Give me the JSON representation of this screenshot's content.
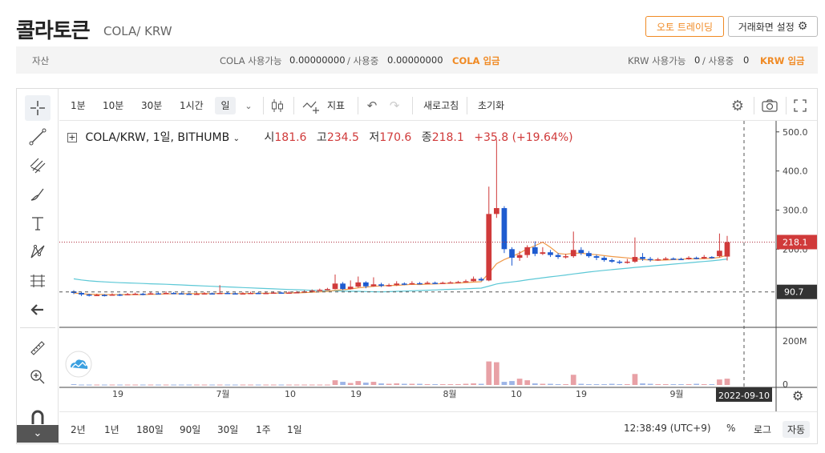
{
  "header": {
    "title": "콜라토큰",
    "subtitle": "COLA/ KRW",
    "auto_trading_label": "오토 트레이딩",
    "settings_label": "거래화면 설정"
  },
  "assets": {
    "label": "자산",
    "cola_available_label": "COLA 사용가능",
    "cola_available": "0.00000000",
    "cola_in_use_label": "/ 사용중",
    "cola_in_use": "0.00000000",
    "cola_deposit": "COLA 입금",
    "krw_available_label": "KRW 사용가능",
    "krw_available": "0",
    "krw_in_use_label": "/ 사용중",
    "krw_in_use": "0",
    "krw_deposit": "KRW 입금"
  },
  "toolbar": {
    "intervals": [
      "1분",
      "10분",
      "30분",
      "1시간",
      "일"
    ],
    "selected_interval": "일",
    "indicator_label": "지표",
    "refresh_label": "새로고침",
    "reset_label": "초기화"
  },
  "legend": {
    "symbol": "COLA/KRW, 1일, BITHUMB",
    "open_label": "시",
    "open": "181.6",
    "high_label": "고",
    "high": "234.5",
    "low_label": "저",
    "low": "170.6",
    "close_label": "종",
    "close": "218.1",
    "change": "+35.8 (+19.64%)"
  },
  "price_axis": {
    "ticks": [
      "500.0",
      "400.0",
      "300.0",
      "200.0"
    ],
    "current_price": "218.1",
    "crosshair_price": "90.7",
    "volume_ticks": [
      "200M",
      "0"
    ]
  },
  "time_axis": {
    "ticks": [
      "19",
      "7월",
      "10",
      "19",
      "8월",
      "10",
      "19",
      "9월"
    ],
    "crosshair_date": "2022-09-10"
  },
  "bottom": {
    "ranges": [
      "2년",
      "1년",
      "180일",
      "90일",
      "30일",
      "1주",
      "1일"
    ],
    "clock": "12:38:49 (UTC+9)",
    "percent_label": "%",
    "log_label": "로그",
    "auto_label": "자동"
  },
  "chart_data": {
    "type": "candlestick",
    "ylim": [
      0,
      520
    ],
    "up_color": "#d03a3a",
    "down_color": "#1e5bd0",
    "candles": [
      [
        92,
        88,
        95,
        85
      ],
      [
        88,
        84,
        90,
        80
      ],
      [
        84,
        82,
        86,
        79
      ],
      [
        82,
        83,
        86,
        80
      ],
      [
        83,
        82,
        85,
        79
      ],
      [
        82,
        84,
        87,
        81
      ],
      [
        84,
        83,
        86,
        80
      ],
      [
        83,
        85,
        88,
        82
      ],
      [
        85,
        86,
        89,
        83
      ],
      [
        86,
        85,
        88,
        82
      ],
      [
        85,
        87,
        90,
        84
      ],
      [
        87,
        86,
        89,
        84
      ],
      [
        86,
        88,
        92,
        85
      ],
      [
        88,
        87,
        90,
        85
      ],
      [
        87,
        86,
        89,
        84
      ],
      [
        86,
        85,
        88,
        83
      ],
      [
        85,
        86,
        89,
        84
      ],
      [
        86,
        87,
        90,
        85
      ],
      [
        87,
        86,
        89,
        84
      ],
      [
        86,
        88,
        108,
        85
      ],
      [
        88,
        87,
        90,
        85
      ],
      [
        87,
        86,
        89,
        84
      ],
      [
        86,
        87,
        90,
        85
      ],
      [
        87,
        88,
        91,
        86
      ],
      [
        88,
        87,
        90,
        85
      ],
      [
        87,
        88,
        91,
        86
      ],
      [
        88,
        89,
        92,
        87
      ],
      [
        89,
        88,
        91,
        86
      ],
      [
        88,
        89,
        92,
        87
      ],
      [
        89,
        90,
        93,
        88
      ],
      [
        90,
        92,
        95,
        89
      ],
      [
        92,
        94,
        97,
        91
      ],
      [
        94,
        96,
        99,
        93
      ],
      [
        96,
        98,
        101,
        95
      ],
      [
        98,
        112,
        135,
        97
      ],
      [
        112,
        98,
        116,
        95
      ],
      [
        98,
        104,
        120,
        97
      ],
      [
        104,
        115,
        130,
        102
      ],
      [
        115,
        105,
        118,
        100
      ],
      [
        105,
        110,
        128,
        104
      ],
      [
        110,
        106,
        114,
        103
      ],
      [
        106,
        108,
        112,
        104
      ],
      [
        108,
        112,
        118,
        106
      ],
      [
        112,
        110,
        115,
        108
      ],
      [
        110,
        113,
        118,
        109
      ],
      [
        113,
        112,
        116,
        110
      ],
      [
        112,
        114,
        118,
        111
      ],
      [
        114,
        113,
        117,
        111
      ],
      [
        113,
        114,
        117,
        112
      ],
      [
        114,
        115,
        118,
        113
      ],
      [
        115,
        116,
        119,
        114
      ],
      [
        116,
        118,
        122,
        115
      ],
      [
        118,
        124,
        130,
        117
      ],
      [
        124,
        120,
        128,
        118
      ],
      [
        120,
        290,
        360,
        118
      ],
      [
        290,
        305,
        480,
        280
      ],
      [
        305,
        200,
        310,
        190
      ],
      [
        200,
        178,
        205,
        158
      ],
      [
        178,
        185,
        195,
        170
      ],
      [
        185,
        205,
        210,
        178
      ],
      [
        205,
        188,
        220,
        182
      ],
      [
        188,
        192,
        205,
        185
      ],
      [
        192,
        185,
        198,
        180
      ],
      [
        185,
        180,
        190,
        175
      ],
      [
        180,
        182,
        188,
        176
      ],
      [
        182,
        198,
        245,
        178
      ],
      [
        198,
        190,
        205,
        185
      ],
      [
        190,
        182,
        195,
        178
      ],
      [
        182,
        178,
        186,
        172
      ],
      [
        178,
        172,
        182,
        168
      ],
      [
        172,
        168,
        176,
        165
      ],
      [
        168,
        165,
        172,
        162
      ],
      [
        165,
        168,
        175,
        163
      ],
      [
        168,
        180,
        230,
        165
      ],
      [
        180,
        175,
        190,
        170
      ],
      [
        175,
        172,
        180,
        168
      ],
      [
        172,
        174,
        178,
        170
      ],
      [
        174,
        176,
        180,
        172
      ],
      [
        176,
        175,
        179,
        173
      ],
      [
        175,
        174,
        178,
        172
      ],
      [
        174,
        178,
        182,
        173
      ],
      [
        178,
        176,
        181,
        174
      ],
      [
        176,
        180,
        185,
        175
      ],
      [
        180,
        178,
        182,
        176
      ],
      [
        182,
        196,
        240,
        179
      ],
      [
        181,
        218,
        234,
        171
      ]
    ],
    "volumes": [
      2,
      1,
      1,
      1,
      1,
      1,
      1,
      1,
      1,
      1,
      1,
      1,
      1,
      1,
      1,
      1,
      1,
      1,
      1,
      1,
      1,
      1,
      1,
      1,
      1,
      1,
      1,
      1,
      1,
      1,
      1,
      1,
      1,
      1,
      12,
      8,
      5,
      10,
      6,
      8,
      4,
      3,
      4,
      3,
      3,
      3,
      2,
      2,
      2,
      2,
      2,
      3,
      4,
      3,
      60,
      58,
      8,
      10,
      16,
      12,
      4,
      3,
      3,
      2,
      2,
      26,
      3,
      2,
      2,
      2,
      3,
      2,
      2,
      28,
      4,
      3,
      2,
      2,
      2,
      2,
      2,
      3,
      2,
      2,
      14,
      16
    ],
    "volume_ylim": [
      0,
      240
    ]
  }
}
